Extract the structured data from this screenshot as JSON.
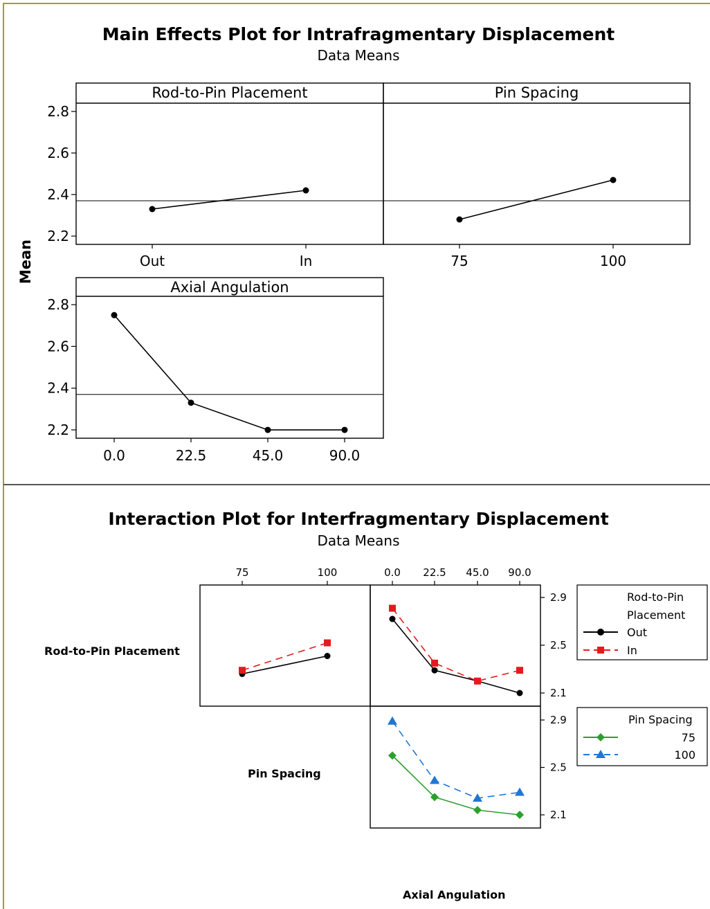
{
  "border_color": "#a0a020",
  "main_effects": {
    "title": "Main Effects Plot for Intrafragmentary Displacement",
    "subtitle": "Data Means",
    "ylabel": "Mean"
  },
  "interaction": {
    "title": "Interaction Plot for Interfragmentary Displacement",
    "subtitle": "Data Means",
    "row_labels": [
      "Rod-to-Pin Placement",
      "Pin Spacing"
    ],
    "bottom_label": "Axial Angulation",
    "legend_rod": {
      "title_line1": "Rod-to-Pin",
      "title_line2": "Placement",
      "entries": [
        "Out",
        "In"
      ]
    },
    "legend_pin": {
      "title": "Pin Spacing",
      "entries": [
        "75",
        "100"
      ]
    }
  },
  "chart_data": [
    {
      "type": "line",
      "panel": "Rod-to-Pin Placement",
      "categories": [
        "Out",
        "In"
      ],
      "values": [
        2.33,
        2.42
      ],
      "grand_mean": 2.37,
      "ylim": [
        2.16,
        2.84
      ],
      "yticks": [
        "2.2",
        "2.4",
        "2.6",
        "2.8"
      ]
    },
    {
      "type": "line",
      "panel": "Pin Spacing",
      "categories": [
        "75",
        "100"
      ],
      "values": [
        2.28,
        2.47
      ],
      "grand_mean": 2.37,
      "ylim": [
        2.16,
        2.84
      ]
    },
    {
      "type": "line",
      "panel": "Axial Angulation",
      "categories": [
        "0.0",
        "22.5",
        "45.0",
        "90.0"
      ],
      "values": [
        2.75,
        2.33,
        2.2,
        2.2
      ],
      "grand_mean": 2.37,
      "ylim": [
        2.16,
        2.84
      ],
      "yticks": [
        "2.2",
        "2.4",
        "2.6",
        "2.8"
      ]
    },
    {
      "type": "line",
      "panel": "Rod-to-Pin Placement x Pin Spacing",
      "categories": [
        "75",
        "100"
      ],
      "series": [
        {
          "name": "Out",
          "values": [
            2.26,
            2.41
          ],
          "color": "#000000",
          "marker": "circle",
          "dash": false
        },
        {
          "name": "In",
          "values": [
            2.29,
            2.52
          ],
          "color": "#e41a1c",
          "marker": "square",
          "dash": true
        }
      ],
      "ylim": [
        2.0,
        3.0
      ]
    },
    {
      "type": "line",
      "panel": "Rod-to-Pin Placement x Axial Angulation",
      "categories": [
        "0.0",
        "22.5",
        "45.0",
        "90.0"
      ],
      "series": [
        {
          "name": "Out",
          "values": [
            2.72,
            2.29,
            2.2,
            2.1
          ],
          "color": "#000000",
          "marker": "circle",
          "dash": false
        },
        {
          "name": "In",
          "values": [
            2.81,
            2.35,
            2.2,
            2.29
          ],
          "color": "#e41a1c",
          "marker": "square",
          "dash": true
        }
      ],
      "ylim": [
        2.0,
        3.0
      ],
      "yticks": [
        "2.1",
        "2.5",
        "2.9"
      ]
    },
    {
      "type": "line",
      "panel": "Pin Spacing x Axial Angulation",
      "categories": [
        "0.0",
        "22.5",
        "45.0",
        "90.0"
      ],
      "series": [
        {
          "name": "75",
          "values": [
            2.6,
            2.25,
            2.14,
            2.1
          ],
          "color": "#2ca02c",
          "marker": "diamond",
          "dash": false
        },
        {
          "name": "100",
          "values": [
            2.89,
            2.39,
            2.24,
            2.29
          ],
          "color": "#1f77d4",
          "marker": "triangle",
          "dash": true
        }
      ],
      "ylim": [
        2.0,
        3.0
      ],
      "yticks": [
        "2.1",
        "2.5",
        "2.9"
      ]
    }
  ]
}
